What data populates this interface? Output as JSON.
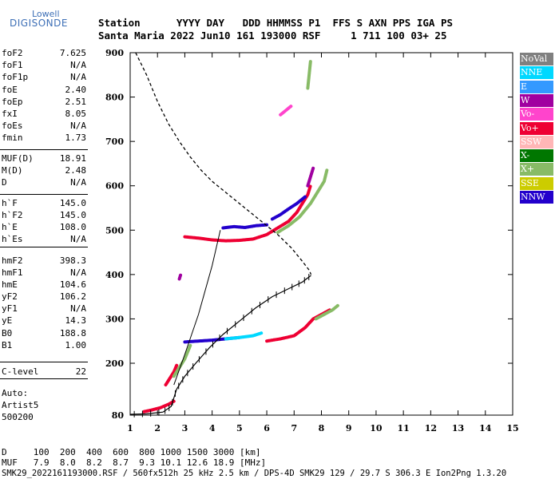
{
  "logo": {
    "line1": "Lowell",
    "line2": "DIGISONDE"
  },
  "header": {
    "row1": "Station      YYYY DAY   DDD HHMMSS P1  FFS S AXN PPS IGA PS",
    "row2": "Santa Maria 2022 Jun10 161 193000 RSF     1 711 100 03+ 25"
  },
  "params": [
    {
      "label": "foF2",
      "value": "7.625"
    },
    {
      "label": "foF1",
      "value": "N/A"
    },
    {
      "label": "foF1p",
      "value": "N/A"
    },
    {
      "label": "foE",
      "value": "2.40"
    },
    {
      "label": "foEp",
      "value": "2.51"
    },
    {
      "label": "fxI",
      "value": "8.05"
    },
    {
      "label": "foEs",
      "value": "N/A"
    },
    {
      "label": "fmin",
      "value": "1.73"
    },
    {
      "label": "MUF(D)",
      "value": "18.91"
    },
    {
      "label": "M(D)",
      "value": "2.48"
    },
    {
      "label": "D",
      "value": "N/A"
    },
    {
      "label": "h`F",
      "value": "145.0"
    },
    {
      "label": "h`F2",
      "value": "145.0"
    },
    {
      "label": "h`E",
      "value": "108.0"
    },
    {
      "label": "h`Es",
      "value": "N/A"
    },
    {
      "label": "hmF2",
      "value": "398.3"
    },
    {
      "label": "hmF1",
      "value": "N/A"
    },
    {
      "label": "hmE",
      "value": "104.6"
    },
    {
      "label": "yF2",
      "value": "106.2"
    },
    {
      "label": "yF1",
      "value": "N/A"
    },
    {
      "label": "yE",
      "value": "14.3"
    },
    {
      "label": "B0",
      "value": "188.8"
    },
    {
      "label": "B1",
      "value": "1.00"
    },
    {
      "label": "C-level",
      "value": "22"
    }
  ],
  "auto": {
    "line1": "Auto:",
    "line2": "Artist5",
    "line3": "500200"
  },
  "legend": [
    {
      "label": "NoVal",
      "color": "#808080",
      "text_color": "#ffffff"
    },
    {
      "label": "NNE",
      "color": "#00d8ff",
      "text_color": "#ffffff"
    },
    {
      "label": "E",
      "color": "#3399ff",
      "text_color": "#ffffff"
    },
    {
      "label": "W",
      "color": "#a000a0",
      "text_color": "#ffffff"
    },
    {
      "label": "Vo-",
      "color": "#ff44cc",
      "text_color": "#ffffff"
    },
    {
      "label": "Vo+",
      "color": "#ee0033",
      "text_color": "#ffffff"
    },
    {
      "label": "SSW",
      "color": "#ffb6b6",
      "text_color": "#ffffff"
    },
    {
      "label": "X-",
      "color": "#007700",
      "text_color": "#ffffff"
    },
    {
      "label": "X+",
      "color": "#88bb66",
      "text_color": "#ffffff"
    },
    {
      "label": "SSE",
      "color": "#cccc00",
      "text_color": "#ffffff"
    },
    {
      "label": "NNW",
      "color": "#2200cc",
      "text_color": "#ffffff"
    }
  ],
  "footer": {
    "d_row": "D     100  200  400  600  800 1000 1500 3000 [km]",
    "muf_row": "MUF   7.9  8.0  8.2  8.7  9.3 10.1 12.6 18.9 [MHz]",
    "file_row": "SMK29_2022161193000.RSF / 560fx512h 25 kHz 2.5 km / DPS-4D SMK29 129 / 29.7 S 306.3 E Ion2Png 1.3.20"
  },
  "chart_data": {
    "type": "scatter",
    "xlim": [
      1,
      15
    ],
    "ylim": [
      80,
      900
    ],
    "x_ticks": [
      1,
      2,
      3,
      4,
      5,
      6,
      7,
      8,
      9,
      10,
      11,
      12,
      13,
      14,
      15
    ],
    "y_ticks": [
      80,
      200,
      300,
      400,
      500,
      600,
      700,
      800,
      900
    ],
    "xlabel": "",
    "ylabel": "",
    "profile_dashed": {
      "x": [
        1.2,
        1.6,
        2.0,
        2.4,
        2.8,
        3.2,
        3.6,
        4.0,
        4.6,
        5.2,
        5.8,
        6.4,
        6.9,
        7.3,
        7.55,
        7.62
      ],
      "y": [
        900,
        850,
        790,
        740,
        700,
        665,
        635,
        610,
        580,
        550,
        520,
        490,
        460,
        430,
        410,
        400
      ]
    },
    "profile_solid": {
      "x": [
        1.0,
        1.6,
        2.2,
        2.5,
        2.7,
        3.0,
        3.4,
        3.9,
        4.4,
        5.0,
        5.6,
        6.2,
        6.8,
        7.3,
        7.62
      ],
      "y": [
        82,
        83,
        87,
        100,
        140,
        170,
        200,
        235,
        265,
        295,
        325,
        350,
        368,
        383,
        398
      ]
    },
    "trace_line": {
      "x": [
        2.6,
        3.0,
        3.5,
        4.0,
        4.3
      ],
      "y": [
        150,
        220,
        310,
        420,
        500
      ]
    },
    "traces": [
      {
        "name": "Vo+",
        "color": "#ee0033",
        "x": [
          1.5,
          1.8,
          2.1,
          2.4,
          2.6
        ],
        "y": [
          88,
          92,
          97,
          105,
          112
        ]
      },
      {
        "name": "Vo+",
        "color": "#ee0033",
        "x": [
          2.3,
          2.4,
          2.5,
          2.6,
          2.7
        ],
        "y": [
          150,
          160,
          170,
          180,
          195
        ]
      },
      {
        "name": "Vo+",
        "color": "#ee0033",
        "x": [
          3.0,
          3.5,
          4.0,
          4.5,
          5.0,
          5.5,
          6.0,
          6.4,
          6.8,
          7.1,
          7.3,
          7.5,
          7.6
        ],
        "y": [
          485,
          482,
          478,
          476,
          477,
          480,
          490,
          505,
          520,
          540,
          560,
          580,
          600
        ]
      },
      {
        "name": "Vo+",
        "color": "#ee0033",
        "x": [
          6.0,
          6.5,
          7.0,
          7.4,
          7.7,
          8.0,
          8.3
        ],
        "y": [
          250,
          255,
          262,
          280,
          300,
          310,
          320
        ]
      },
      {
        "name": "X+",
        "color": "#88bb66",
        "x": [
          6.4,
          6.8,
          7.2,
          7.6,
          7.9,
          8.1,
          8.2
        ],
        "y": [
          495,
          510,
          530,
          560,
          590,
          610,
          635
        ]
      },
      {
        "name": "X+",
        "color": "#88bb66",
        "x": [
          7.8,
          8.1,
          8.4,
          8.6
        ],
        "y": [
          300,
          310,
          320,
          330
        ]
      },
      {
        "name": "X+",
        "color": "#88bb66",
        "x": [
          2.6,
          2.8,
          3.0,
          3.2
        ],
        "y": [
          170,
          190,
          210,
          240
        ]
      },
      {
        "name": "NNW",
        "color": "#2200cc",
        "x": [
          4.4,
          4.8,
          5.2,
          5.6,
          6.0
        ],
        "y": [
          505,
          508,
          506,
          510,
          512
        ]
      },
      {
        "name": "NNW",
        "color": "#2200cc",
        "x": [
          6.2,
          6.5,
          6.8,
          7.1,
          7.4
        ],
        "y": [
          525,
          535,
          548,
          560,
          575
        ]
      },
      {
        "name": "NNW",
        "color": "#2200cc",
        "x": [
          3.0,
          3.5,
          4.0,
          4.5,
          5.0
        ],
        "y": [
          248,
          250,
          252,
          255,
          258
        ]
      },
      {
        "name": "NNE",
        "color": "#00d8ff",
        "x": [
          4.5,
          5.0,
          5.5,
          5.8
        ],
        "y": [
          255,
          258,
          262,
          268
        ]
      },
      {
        "name": "W",
        "color": "#a000a0",
        "x": [
          2.8,
          2.85
        ],
        "y": [
          390,
          400
        ]
      },
      {
        "name": "W",
        "color": "#a000a0",
        "x": [
          7.5,
          7.6,
          7.7
        ],
        "y": [
          600,
          620,
          640
        ]
      },
      {
        "name": "X+",
        "color": "#88bb66",
        "x": [
          7.5,
          7.55,
          7.6
        ],
        "y": [
          820,
          850,
          880
        ]
      },
      {
        "name": "Vo-",
        "color": "#ff44cc",
        "x": [
          6.5,
          6.7,
          6.9
        ],
        "y": [
          760,
          770,
          780
        ]
      }
    ]
  }
}
